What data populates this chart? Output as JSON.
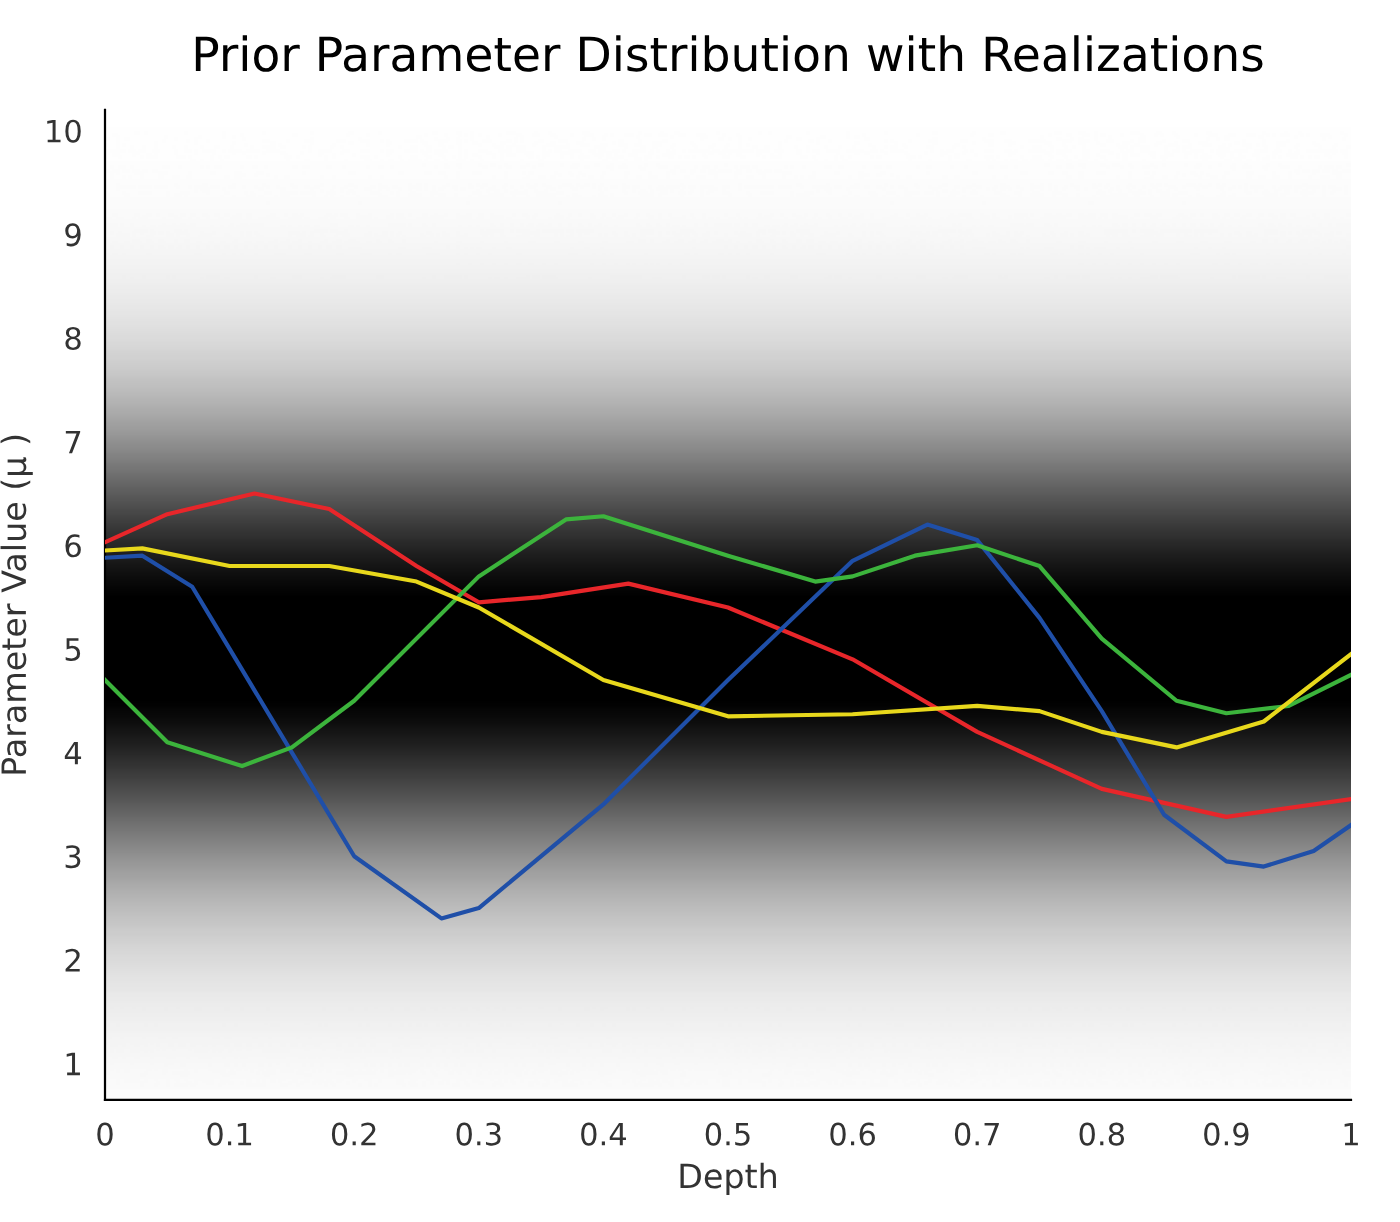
{
  "chart_data": {
    "type": "line",
    "title": "Prior Parameter Distribution with Realizations",
    "xlabel": "Depth",
    "ylabel": "Parameter Value (μ )",
    "xlim": [
      0,
      1
    ],
    "ylim": [
      0.65,
      10.2
    ],
    "xticks": [
      0,
      0.1,
      0.2,
      0.3,
      0.4,
      0.5,
      0.6,
      0.7,
      0.8,
      0.9,
      1
    ],
    "yticks": [
      1,
      2,
      3,
      4,
      5,
      6,
      7,
      8,
      9,
      10
    ],
    "marker": "none",
    "line_style": "solid",
    "series": [
      {
        "color": "#e8262a",
        "x": [
          0,
          0.05,
          0.12,
          0.18,
          0.25,
          0.3,
          0.35,
          0.42,
          0.5,
          0.6,
          0.7,
          0.8,
          0.9,
          1.0
        ],
        "values": [
          6.03,
          6.3,
          6.5,
          6.35,
          5.8,
          5.45,
          5.5,
          5.63,
          5.4,
          4.9,
          4.2,
          3.65,
          3.38,
          3.55
        ]
      },
      {
        "color": "#1f4fa8",
        "x": [
          0,
          0.03,
          0.07,
          0.1,
          0.15,
          0.2,
          0.27,
          0.3,
          0.4,
          0.5,
          0.6,
          0.66,
          0.7,
          0.75,
          0.8,
          0.85,
          0.9,
          0.93,
          0.97,
          1.0
        ],
        "values": [
          5.88,
          5.9,
          5.6,
          5.0,
          4.0,
          3.0,
          2.4,
          2.5,
          3.5,
          4.7,
          5.85,
          6.2,
          6.05,
          5.3,
          4.4,
          3.4,
          2.95,
          2.9,
          3.05,
          3.3
        ]
      },
      {
        "color": "#3cb43c",
        "x": [
          0,
          0.05,
          0.11,
          0.15,
          0.2,
          0.3,
          0.37,
          0.4,
          0.5,
          0.57,
          0.6,
          0.65,
          0.7,
          0.75,
          0.8,
          0.86,
          0.9,
          0.95,
          1.0
        ],
        "values": [
          4.7,
          4.1,
          3.87,
          4.05,
          4.5,
          5.7,
          6.25,
          6.28,
          5.9,
          5.65,
          5.7,
          5.9,
          6.0,
          5.8,
          5.1,
          4.5,
          4.38,
          4.45,
          4.75
        ]
      },
      {
        "color": "#e8d81c",
        "x": [
          0,
          0.03,
          0.1,
          0.18,
          0.25,
          0.3,
          0.4,
          0.5,
          0.6,
          0.7,
          0.75,
          0.8,
          0.86,
          0.93,
          1.0
        ],
        "values": [
          5.95,
          5.97,
          5.8,
          5.8,
          5.65,
          5.4,
          4.7,
          4.35,
          4.37,
          4.45,
          4.4,
          4.2,
          4.05,
          4.3,
          4.95
        ]
      }
    ]
  }
}
